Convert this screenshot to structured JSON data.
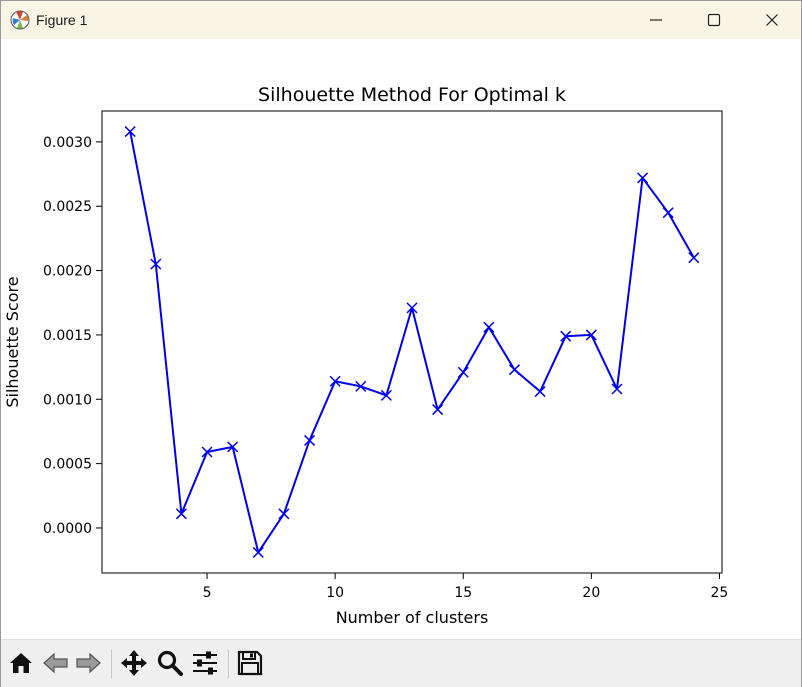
{
  "window": {
    "title": "Figure 1",
    "controls": [
      "minimize",
      "maximize",
      "close"
    ]
  },
  "toolbar": {
    "buttons": [
      "home-icon",
      "back-arrow-icon",
      "forward-arrow-icon",
      "pan-icon",
      "zoom-icon",
      "configure-subplots-icon",
      "save-icon"
    ]
  },
  "colors": {
    "line": "#0000ee",
    "titlebar": "#f8f4e6",
    "toolbar": "#f0f0f0"
  },
  "chart_data": {
    "type": "line",
    "title": "Silhouette Method For Optimal k",
    "xlabel": "Number of clusters",
    "ylabel": "Silhouette Score",
    "marker": "x",
    "x": [
      2,
      3,
      4,
      5,
      6,
      7,
      8,
      9,
      10,
      11,
      12,
      13,
      14,
      15,
      16,
      17,
      18,
      19,
      20,
      21,
      22,
      23,
      24
    ],
    "y": [
      0.00308,
      0.00205,
      0.00011,
      0.00059,
      0.00063,
      -0.00019,
      0.00011,
      0.00068,
      0.00114,
      0.0011,
      0.00103,
      0.00171,
      0.00092,
      0.00121,
      0.00156,
      0.00123,
      0.00106,
      0.00149,
      0.0015,
      0.00108,
      0.00272,
      0.00245,
      0.0021
    ],
    "xlim": [
      0.9,
      25.1
    ],
    "ylim": [
      -0.00035,
      0.00324
    ],
    "xticks": [
      5,
      10,
      15,
      20,
      25
    ],
    "xtick_labels": [
      "5",
      "10",
      "15",
      "20",
      "25"
    ],
    "yticks": [
      0.0,
      0.0005,
      0.001,
      0.0015,
      0.002,
      0.0025,
      0.003
    ],
    "ytick_labels": [
      "0.0000",
      "0.0005",
      "0.0010",
      "0.0015",
      "0.0020",
      "0.0025",
      "0.0030"
    ],
    "grid": false,
    "legend": false
  }
}
